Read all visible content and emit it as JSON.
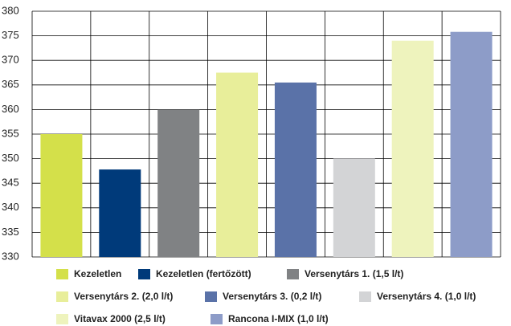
{
  "chart_data": {
    "type": "bar",
    "categories": [
      null
    ],
    "series": [
      {
        "name": "Kezeletlen",
        "color": "#d4e04a",
        "values": [
          355
        ]
      },
      {
        "name": "Kezeletlen (fertőzött)",
        "color": "#003a7a",
        "values": [
          347.8
        ]
      },
      {
        "name": "Versenytárs 1. (1,5 l/t)",
        "color": "#808284",
        "values": [
          360
        ]
      },
      {
        "name": "Versenytárs 2. (2,0 l/t)",
        "color": "#e8ee9a",
        "values": [
          367.5
        ]
      },
      {
        "name": "Versenytárs 3. (0,2 l/t)",
        "color": "#5a72a8",
        "values": [
          365.5
        ]
      },
      {
        "name": "Versenytárs 4. (1,0 l/t)",
        "color": "#d3d4d6",
        "values": [
          350
        ]
      },
      {
        "name": "Vitavax 2000 (2,5 l/t)",
        "color": "#eef3bd",
        "values": [
          374
        ]
      },
      {
        "name": "Rancona I-MIX (1,0 l/t)",
        "color": "#8d9cc8",
        "values": [
          375.8
        ]
      }
    ],
    "ylim": [
      330,
      380
    ],
    "yticks": [
      330,
      335,
      340,
      345,
      350,
      355,
      360,
      365,
      370,
      375,
      380
    ],
    "grid": true
  }
}
